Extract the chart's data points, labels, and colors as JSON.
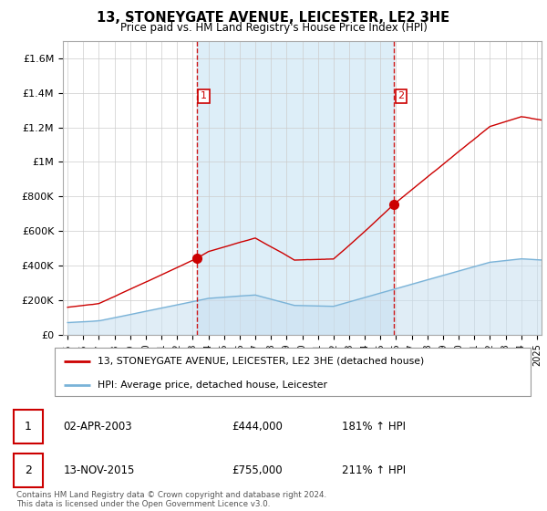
{
  "title": "13, STONEYGATE AVENUE, LEICESTER, LE2 3HE",
  "subtitle": "Price paid vs. HM Land Registry's House Price Index (HPI)",
  "hpi_line_color": "#7ab3d8",
  "hpi_fill_color": "#c8dff0",
  "sale_color": "#cc0000",
  "vline_color": "#cc0000",
  "shade_color": "#ddeef8",
  "ylim": [
    0,
    1700000
  ],
  "yticks": [
    0,
    200000,
    400000,
    600000,
    800000,
    1000000,
    1200000,
    1400000,
    1600000
  ],
  "ytick_labels": [
    "£0",
    "£200K",
    "£400K",
    "£600K",
    "£800K",
    "£1M",
    "£1.2M",
    "£1.4M",
    "£1.6M"
  ],
  "x_start_year": 1995,
  "x_end_year": 2025,
  "sale1_year": 2003.25,
  "sale1_price": 444000,
  "sale2_year": 2015.87,
  "sale2_price": 755000,
  "legend_sale_text": "13, STONEYGATE AVENUE, LEICESTER, LE2 3HE (detached house)",
  "legend_hpi_text": "HPI: Average price, detached house, Leicester",
  "annot1_label": "1",
  "annot1_date": "02-APR-2003",
  "annot1_price": "£444,000",
  "annot1_hpi": "181% ↑ HPI",
  "annot2_label": "2",
  "annot2_date": "13-NOV-2015",
  "annot2_price": "£755,000",
  "annot2_hpi": "211% ↑ HPI",
  "footer": "Contains HM Land Registry data © Crown copyright and database right 2024.\nThis data is licensed under the Open Government Licence v3.0."
}
